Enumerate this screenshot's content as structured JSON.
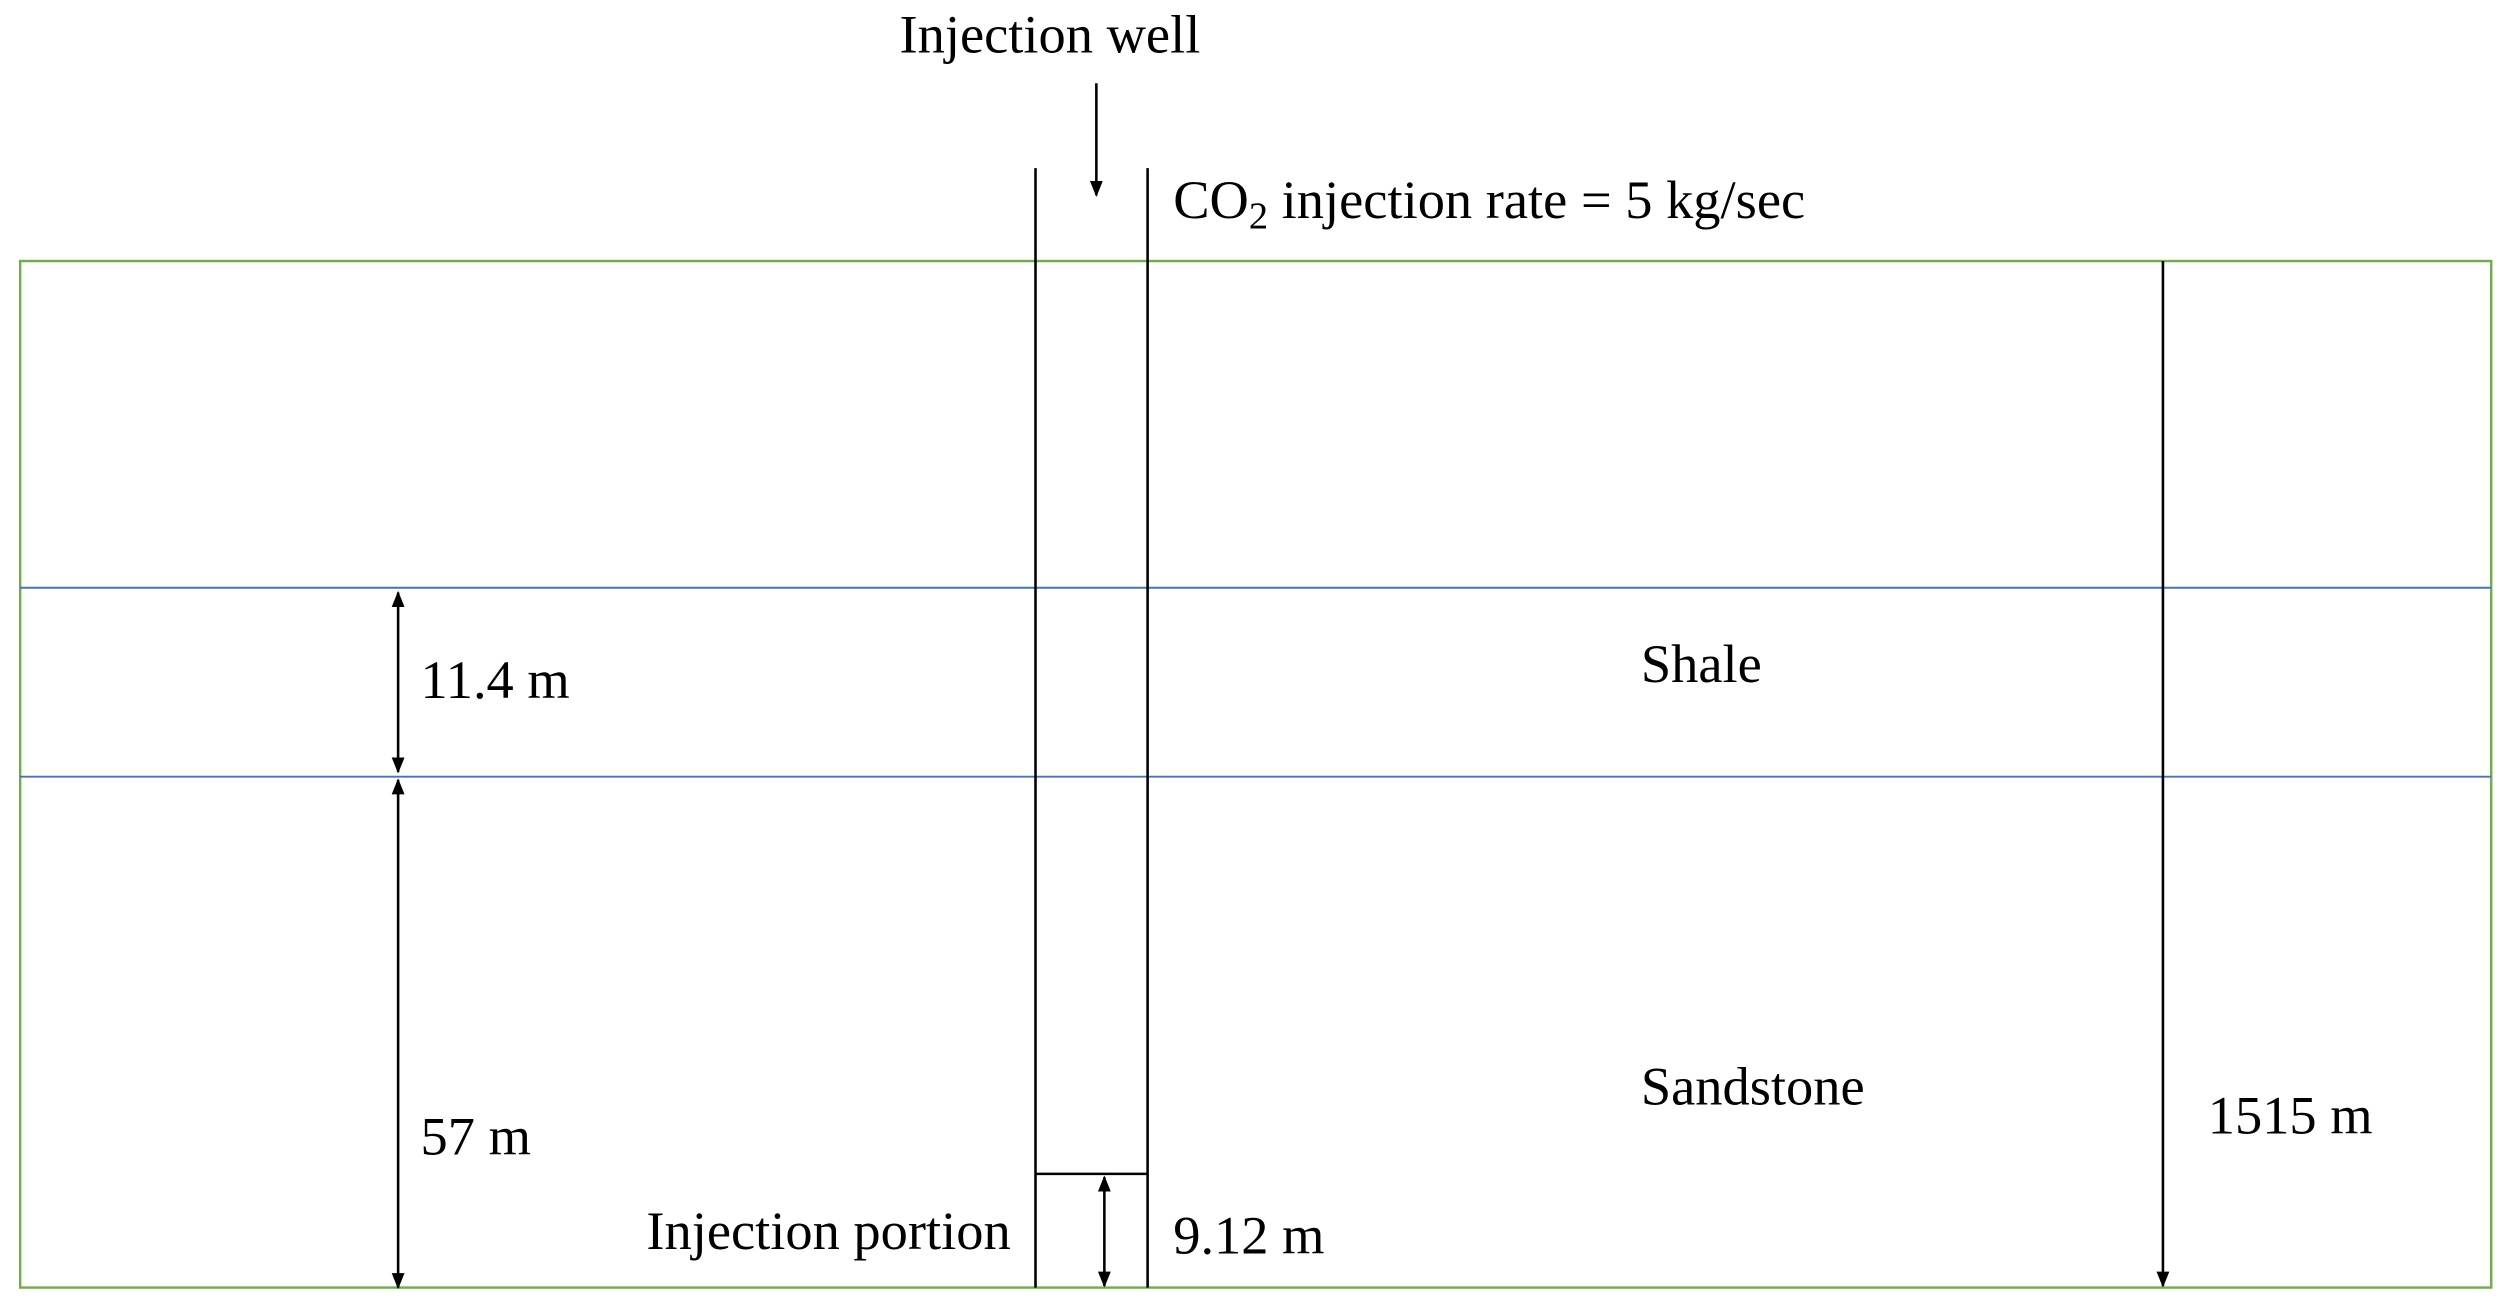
{
  "well": {
    "label": "Injection well"
  },
  "injection_rate": {
    "prefix": "CO",
    "subscript": "2",
    "text": " injection rate = 5 kg/sec"
  },
  "layers": [
    {
      "name": "Shale",
      "thickness": "11.4 m"
    },
    {
      "name": "Sandstone",
      "thickness": "57 m"
    }
  ],
  "injection_portion": {
    "label": "Injection portion",
    "length": "9.12 m"
  },
  "depth": "1515 m"
}
